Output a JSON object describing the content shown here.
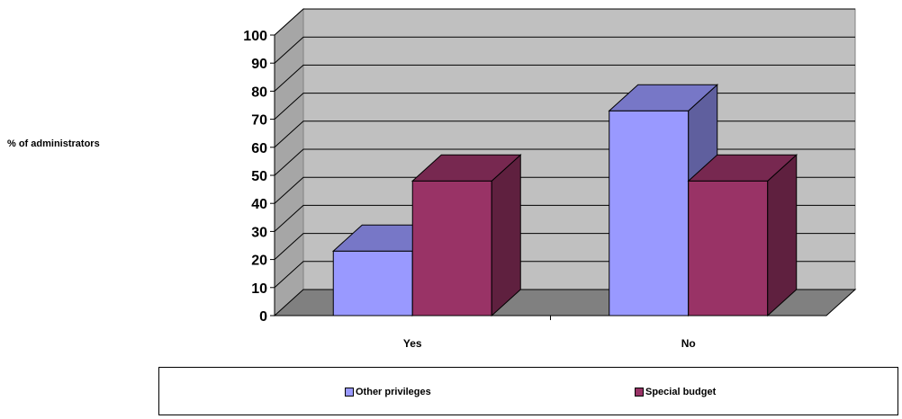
{
  "chart_data": {
    "type": "bar",
    "title": "",
    "ylabel": "% of administrators",
    "xlabel": "",
    "categories": [
      "Yes",
      "No"
    ],
    "series": [
      {
        "name": "Other privileges",
        "values": [
          23,
          73
        ],
        "color": "#9999FF"
      },
      {
        "name": "Special budget",
        "values": [
          48,
          48
        ],
        "color": "#993366"
      }
    ],
    "ylim": [
      0,
      100
    ],
    "yticks": [
      0,
      10,
      20,
      30,
      40,
      50,
      60,
      70,
      80,
      90,
      100
    ],
    "grid": true,
    "legend": "bottom",
    "three_d": true
  }
}
